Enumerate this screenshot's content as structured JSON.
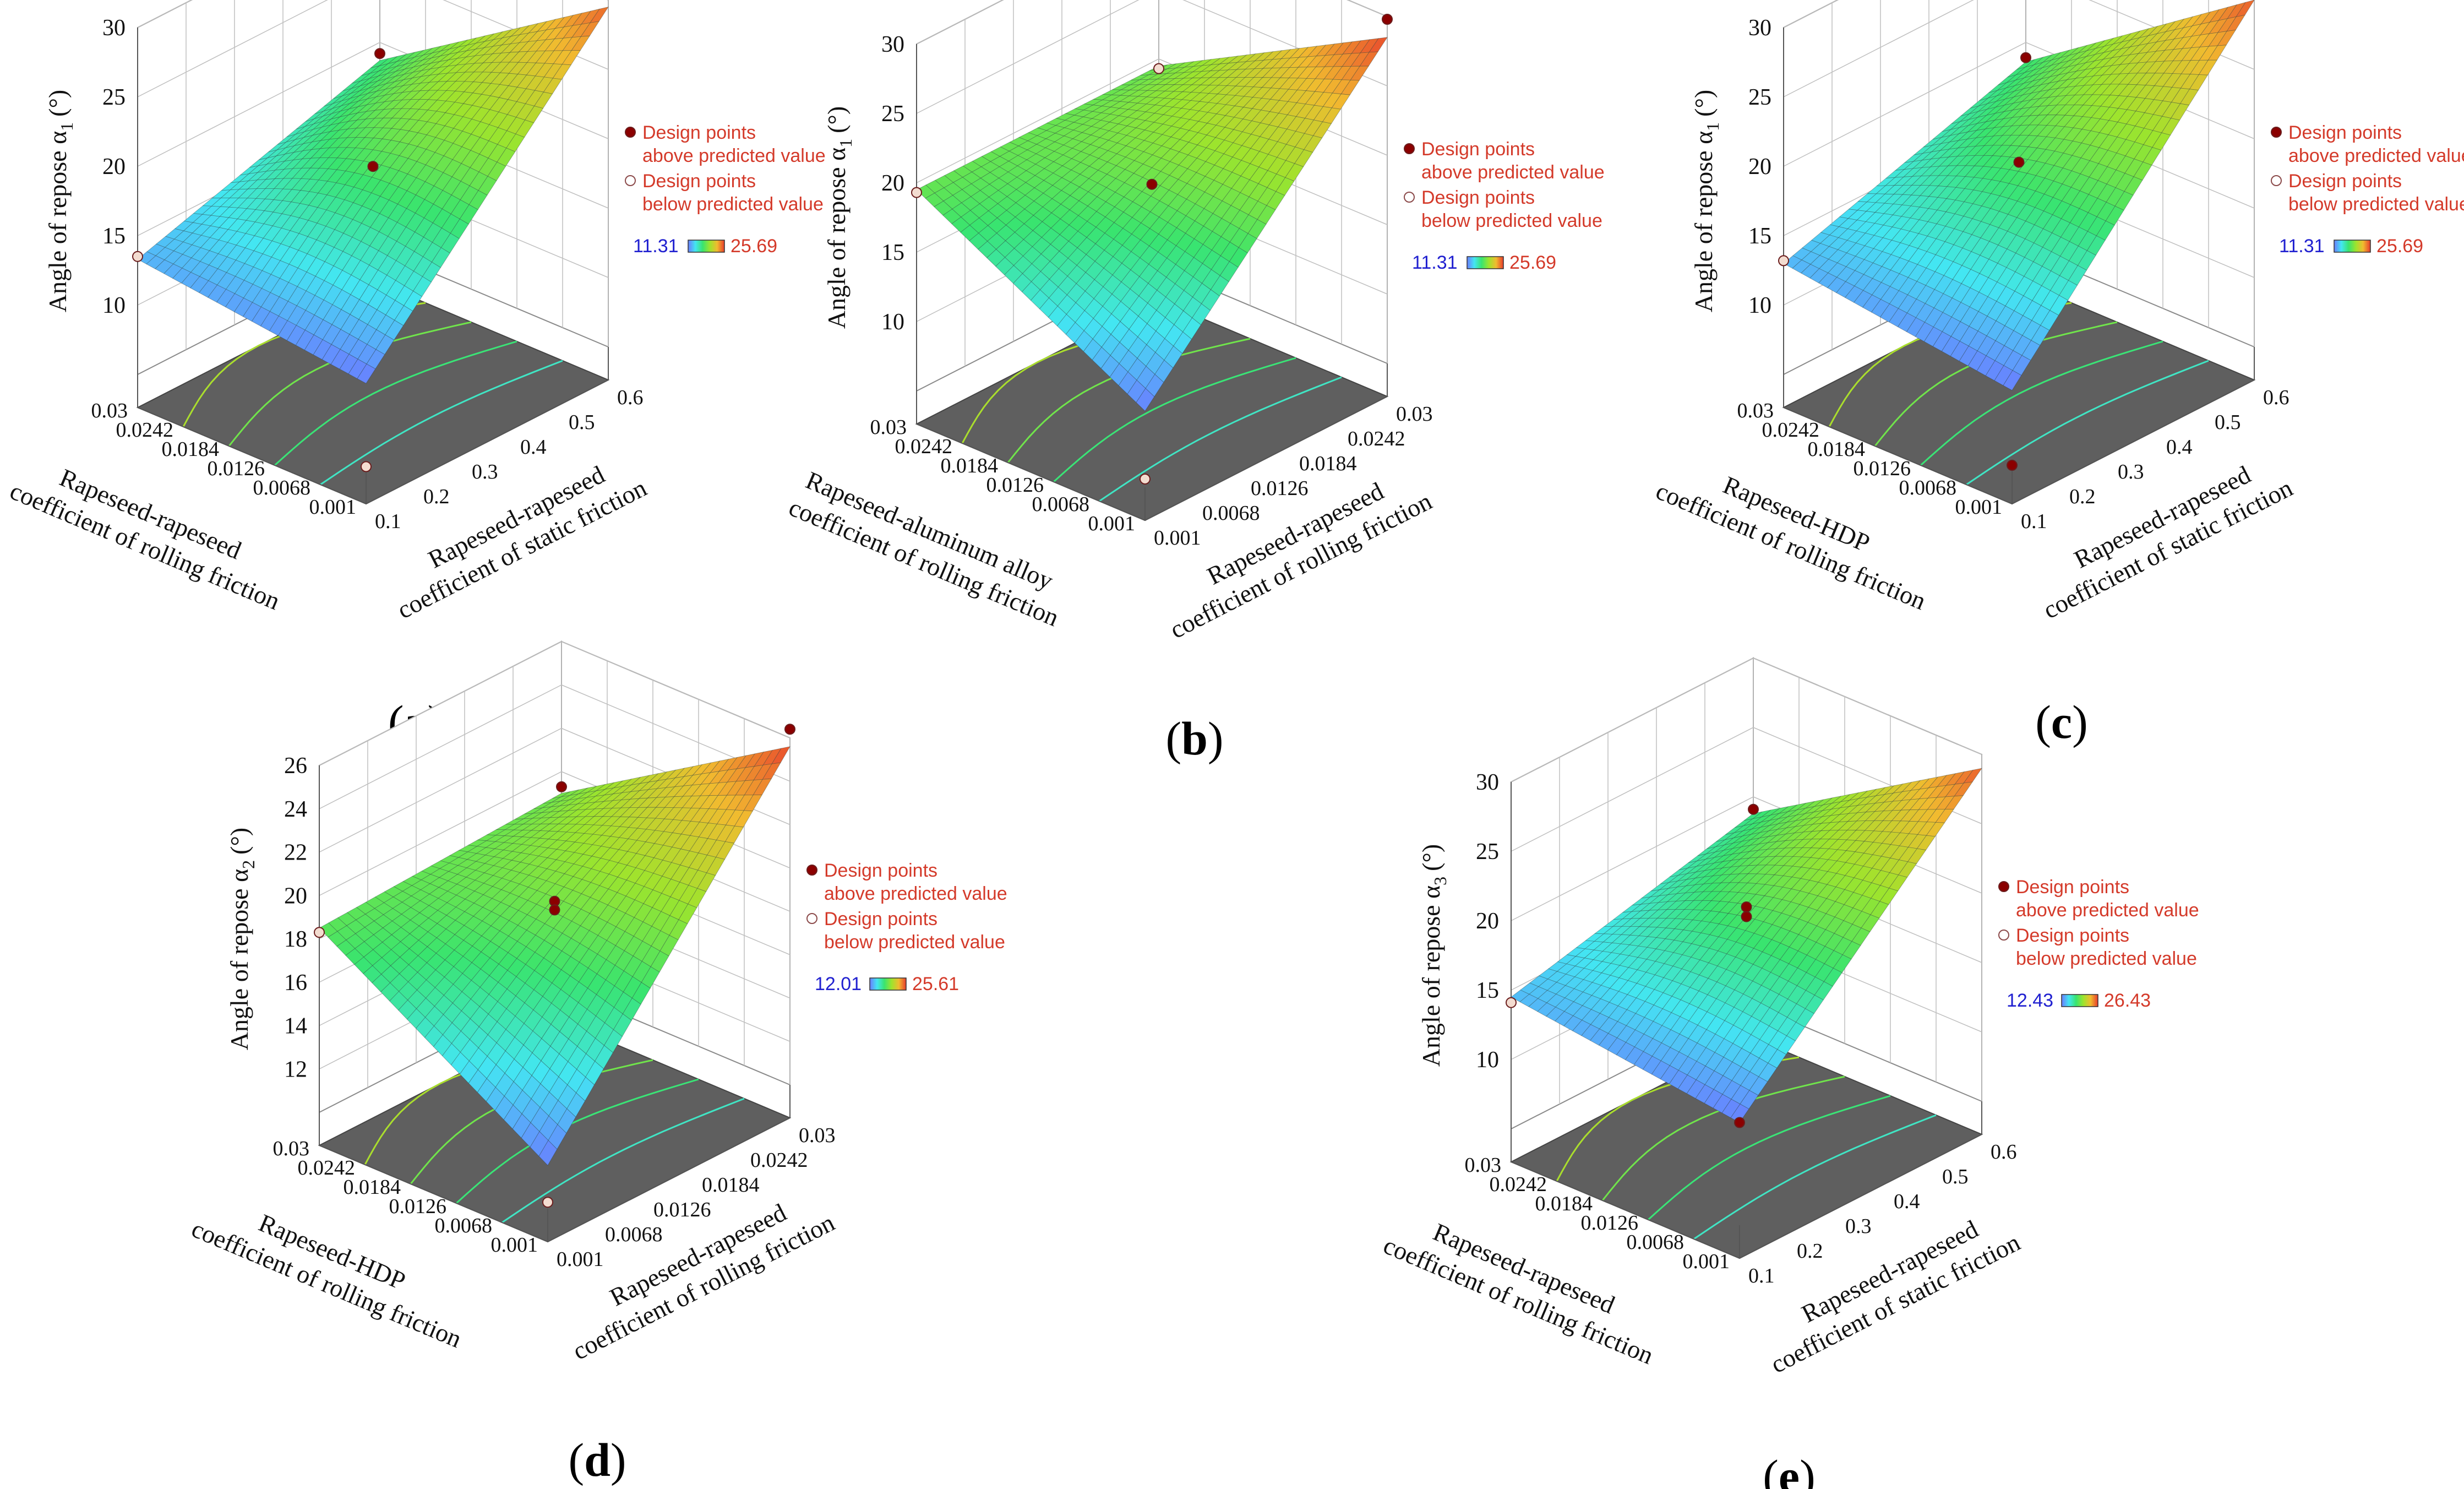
{
  "figure": {
    "colors": {
      "floor": "#5f5f5f",
      "frame": "#8a8a8a",
      "grid": "#bfbfbf",
      "above": "#8b0000",
      "below": "#f3dcd0",
      "legend_text": "#d43a2a",
      "legend_low": "#2020d0",
      "legend_high": "#d43a2a",
      "ramp": [
        "#6a7cff",
        "#43e6f2",
        "#39e46f",
        "#9de42d",
        "#f1bb2f",
        "#e83b2c"
      ]
    }
  },
  "chart_data": [
    {
      "id": "a",
      "type": "surface3d",
      "panel_label": "a",
      "zlabel": "Angle of repose α",
      "zlabel_sub": "1",
      "zlabel_unit": "(°)",
      "zticks": [
        "10",
        "15",
        "20",
        "25",
        "30"
      ],
      "zlim": [
        5,
        30
      ],
      "left_axis": {
        "label_lines": [
          "Rapeseed-rapeseed",
          "coefficient of rolling friction"
        ],
        "ticks": [
          "0.03",
          "0.0242",
          "0.0184",
          "0.0126",
          "0.0068",
          "0.001"
        ]
      },
      "right_axis": {
        "label_lines": [
          "Rapeseed-rapeseed",
          "coefficient of static friction"
        ],
        "ticks": [
          "0.1",
          "0.2",
          "0.3",
          "0.4",
          "0.5",
          "0.6"
        ]
      },
      "corner_values": [
        13.3,
        29.5,
        11.3,
        18.7
      ],
      "curvature": 2.0,
      "design_points": [
        {
          "u": 0.5,
          "v": 0.5,
          "z": 19.0,
          "type": "above"
        },
        {
          "u": 1,
          "v": 0,
          "z": 19.2,
          "type": "above"
        },
        {
          "u": 0,
          "v": 0,
          "z": 13.5,
          "type": "below"
        },
        {
          "u": 0,
          "v": 1,
          "z": 5.3,
          "type": "below"
        }
      ],
      "legend": {
        "above_lines": [
          "Design points",
          "above predicted value"
        ],
        "below_lines": [
          "Design points",
          "below predicted value"
        ],
        "low": "11.31",
        "high": "25.69"
      }
    },
    {
      "id": "b",
      "type": "surface3d",
      "panel_label": "b",
      "zlabel": "Angle of repose α",
      "zlabel_sub": "1",
      "zlabel_unit": "(°)",
      "zticks": [
        "10",
        "15",
        "20",
        "25",
        "30"
      ],
      "zlim": [
        5,
        30
      ],
      "left_axis": {
        "label_lines": [
          "Rapeseed-aluminum alloy",
          "coefficient of rolling friction"
        ],
        "ticks": [
          "0.03",
          "0.0242",
          "0.0184",
          "0.0126",
          "0.0068",
          "0.001"
        ]
      },
      "right_axis": {
        "label_lines": [
          "Rapeseed-rapeseed",
          "coefficient of rolling friction"
        ],
        "ticks": [
          "0.001",
          "0.0068",
          "0.0126",
          "0.0184",
          "0.0242",
          "0.03"
        ]
      },
      "corner_values": [
        19.5,
        28.5,
        10.5,
        19.5
      ],
      "curvature": 0.6,
      "design_points": [
        {
          "u": 0.5,
          "v": 0.5,
          "z": 18.9,
          "type": "above"
        },
        {
          "u": 1,
          "v": 1,
          "z": 29.8,
          "type": "above"
        },
        {
          "u": 0,
          "v": 0,
          "z": 19.3,
          "type": "below"
        },
        {
          "u": 1,
          "v": 0,
          "z": 19.3,
          "type": "below"
        },
        {
          "u": 0,
          "v": 1,
          "z": 5.6,
          "type": "below"
        }
      ],
      "legend": {
        "above_lines": [
          "Design points",
          "above predicted value"
        ],
        "below_lines": [
          "Design points",
          "below predicted value"
        ],
        "low": "11.31",
        "high": "25.69"
      }
    },
    {
      "id": "c",
      "type": "surface3d",
      "panel_label": "c",
      "zlabel": "Angle of repose α",
      "zlabel_sub": "1",
      "zlabel_unit": "(°)",
      "zticks": [
        "10",
        "15",
        "20",
        "25",
        "30"
      ],
      "zlim": [
        5,
        30
      ],
      "left_axis": {
        "label_lines": [
          "Rapeseed-HDP",
          "coefficient of rolling friction"
        ],
        "ticks": [
          "0.03",
          "0.0242",
          "0.0184",
          "0.0126",
          "0.0068",
          "0.001"
        ]
      },
      "right_axis": {
        "label_lines": [
          "Rapeseed-rapeseed",
          "coefficient of static friction"
        ],
        "ticks": [
          "0.1",
          "0.2",
          "0.3",
          "0.4",
          "0.5",
          "0.6"
        ]
      },
      "corner_values": [
        13.0,
        30.0,
        10.8,
        18.6
      ],
      "curvature": 1.5,
      "design_points": [
        {
          "u": 0.5,
          "v": 0.5,
          "z": 19.3,
          "type": "above"
        },
        {
          "u": 1,
          "v": 0,
          "z": 18.9,
          "type": "above"
        },
        {
          "u": 0,
          "v": 1,
          "z": 5.4,
          "type": "above"
        },
        {
          "u": 0,
          "v": 0,
          "z": 13.2,
          "type": "below"
        }
      ],
      "legend": {
        "above_lines": [
          "Design points",
          "above predicted value"
        ],
        "below_lines": [
          "Design points",
          "below predicted value"
        ],
        "low": "11.31",
        "high": "25.69"
      }
    },
    {
      "id": "d",
      "type": "surface3d",
      "panel_label": "d",
      "zlabel": "Angle of repose α",
      "zlabel_sub": "2",
      "zlabel_unit": "(°)",
      "zticks": [
        "12",
        "14",
        "16",
        "18",
        "20",
        "22",
        "24",
        "26"
      ],
      "zlim": [
        10,
        26
      ],
      "left_axis": {
        "label_lines": [
          "Rapeseed-HDP",
          "coefficient of rolling friction"
        ],
        "ticks": [
          "0.03",
          "0.0242",
          "0.0184",
          "0.0126",
          "0.0068",
          "0.001"
        ]
      },
      "right_axis": {
        "label_lines": [
          "Rapeseed-rapeseed",
          "coefficient of rolling friction"
        ],
        "ticks": [
          "0.001",
          "0.0068",
          "0.0126",
          "0.0184",
          "0.0242",
          "0.03"
        ]
      },
      "corner_values": [
        18.5,
        25.6,
        12.0,
        19.0
      ],
      "curvature": 0.5,
      "design_points": [
        {
          "u": 0.5,
          "v": 0.5,
          "z": 19.1,
          "type": "above"
        },
        {
          "u": 0.5,
          "v": 0.5,
          "z": 18.7,
          "type": "above"
        },
        {
          "u": 1,
          "v": 1,
          "z": 26.4,
          "type": "above"
        },
        {
          "u": 1,
          "v": 0,
          "z": 19.3,
          "type": "above"
        },
        {
          "u": 0,
          "v": 0,
          "z": 18.3,
          "type": "below"
        },
        {
          "u": 0,
          "v": 1,
          "z": 10.3,
          "type": "below"
        }
      ],
      "legend": {
        "above_lines": [
          "Design points",
          "above predicted value"
        ],
        "below_lines": [
          "Design points",
          "below predicted value"
        ],
        "low": "12.01",
        "high": "25.61"
      }
    },
    {
      "id": "e",
      "type": "surface3d",
      "panel_label": "e",
      "zlabel": "Angle of repose α",
      "zlabel_sub": "3",
      "zlabel_unit": "(°)",
      "zticks": [
        "10",
        "15",
        "20",
        "25",
        "30"
      ],
      "zlim": [
        5,
        30
      ],
      "left_axis": {
        "label_lines": [
          "Rapeseed-rapeseed",
          "coefficient of rolling friction"
        ],
        "ticks": [
          "0.03",
          "0.0242",
          "0.0184",
          "0.0126",
          "0.0068",
          "0.001"
        ]
      },
      "right_axis": {
        "label_lines": [
          "Rapeseed-rapeseed",
          "coefficient of static friction"
        ],
        "ticks": [
          "0.1",
          "0.2",
          "0.3",
          "0.4",
          "0.5",
          "0.6"
        ]
      },
      "corner_values": [
        14.5,
        29.0,
        12.4,
        18.8
      ],
      "curvature": 1.5,
      "design_points": [
        {
          "u": 0.5,
          "v": 0.5,
          "z": 20.0,
          "type": "above"
        },
        {
          "u": 0.5,
          "v": 0.5,
          "z": 19.3,
          "type": "above"
        },
        {
          "u": 1,
          "v": 0,
          "z": 19.1,
          "type": "above"
        },
        {
          "u": 0,
          "v": 1,
          "z": 12.4,
          "type": "above"
        },
        {
          "u": 0,
          "v": 0,
          "z": 14.1,
          "type": "below"
        }
      ],
      "legend": {
        "above_lines": [
          "Design points",
          "above predicted value"
        ],
        "below_lines": [
          "Design points",
          "below predicted value"
        ],
        "low": "12.43",
        "high": "26.43"
      }
    }
  ]
}
